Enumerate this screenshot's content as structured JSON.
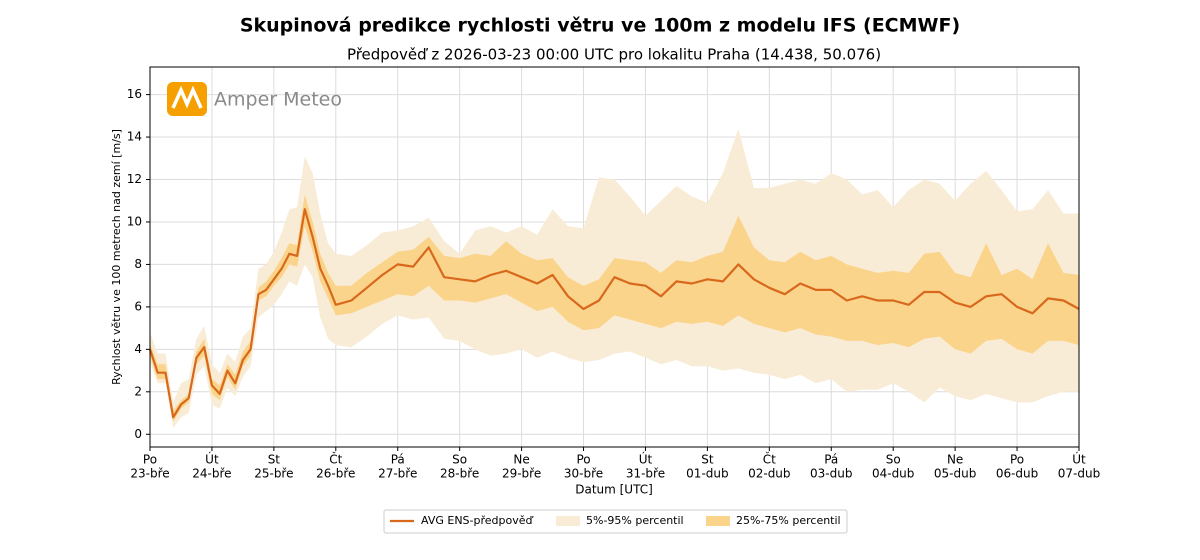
{
  "chart_data": {
    "type": "line",
    "title": "Skupinová predikce rychlosti větru ve 100m z modelu IFS (ECMWF)",
    "subtitle": "Předpověď z 2026-03-23 00:00 UTC pro lokalitu Praha (14.438, 50.076)",
    "watermark": "Amper Meteo",
    "x_label": "Datum [UTC]",
    "y_label": "Rychlost větru ve 100 metrech nad zemí [m/s]",
    "xlim": [
      0,
      15
    ],
    "ylim": [
      -0.6,
      17.3
    ],
    "yticks": [
      0,
      2,
      4,
      6,
      8,
      10,
      12,
      14,
      16
    ],
    "xticks": [
      {
        "value": 0,
        "label": "Po"
      },
      {
        "value": 1,
        "label": "Út"
      },
      {
        "value": 2,
        "label": "St"
      },
      {
        "value": 3,
        "label": "Čt"
      },
      {
        "value": 4,
        "label": "Pá"
      },
      {
        "value": 5,
        "label": "So"
      },
      {
        "value": 6,
        "label": "Ne"
      },
      {
        "value": 7,
        "label": "Po"
      },
      {
        "value": 8,
        "label": "Út"
      },
      {
        "value": 9,
        "label": "St"
      },
      {
        "value": 10,
        "label": "Čt"
      },
      {
        "value": 11,
        "label": "Pá"
      },
      {
        "value": 12,
        "label": "So"
      },
      {
        "value": 13,
        "label": "Ne"
      },
      {
        "value": 14,
        "label": "Po"
      },
      {
        "value": 15,
        "label": "Út"
      }
    ],
    "xtick_dates": [
      "23-bře",
      "24-bře",
      "25-bře",
      "26-bře",
      "27-bře",
      "28-bře",
      "29-bře",
      "30-bře",
      "31-bře",
      "01-dub",
      "02-dub",
      "03-dub",
      "04-dub",
      "05-dub",
      "06-dub",
      "07-dub"
    ],
    "grid": true,
    "legend": "bottom",
    "x": [
      0,
      0.125,
      0.25,
      0.375,
      0.5,
      0.625,
      0.75,
      0.875,
      1,
      1.125,
      1.25,
      1.375,
      1.5,
      1.625,
      1.75,
      1.875,
      2,
      2.125,
      2.25,
      2.375,
      2.5,
      2.625,
      2.75,
      2.875,
      3,
      3.25,
      3.5,
      3.75,
      4,
      4.25,
      4.5,
      4.75,
      5,
      5.25,
      5.5,
      5.75,
      6,
      6.25,
      6.5,
      6.75,
      7,
      7.25,
      7.5,
      7.75,
      8,
      8.25,
      8.5,
      8.75,
      9,
      9.25,
      9.5,
      9.75,
      10,
      10.25,
      10.5,
      10.75,
      11,
      11.25,
      11.5,
      11.75,
      12,
      12.25,
      12.5,
      12.75,
      13,
      13.25,
      13.5,
      13.75,
      14,
      14.25,
      14.5,
      14.75,
      15
    ],
    "series": [
      {
        "name": "AVG ENS-předpověď",
        "color": "#d8691c",
        "values": [
          4.0,
          2.9,
          2.9,
          0.8,
          1.4,
          1.7,
          3.6,
          4.1,
          2.3,
          1.9,
          3.0,
          2.4,
          3.5,
          4.0,
          6.6,
          6.8,
          7.3,
          7.8,
          8.5,
          8.4,
          10.6,
          9.3,
          7.8,
          7.0,
          6.1,
          6.3,
          6.9,
          7.5,
          8.0,
          7.9,
          8.8,
          7.4,
          7.3,
          7.2,
          7.5,
          7.7,
          7.4,
          7.1,
          7.5,
          6.5,
          5.9,
          6.3,
          7.4,
          7.1,
          7.0,
          6.5,
          7.2,
          7.1,
          7.3,
          7.2,
          8.0,
          7.3,
          6.9,
          6.6,
          7.1,
          6.8,
          6.8,
          6.3,
          6.5,
          6.3,
          6.3,
          6.1,
          6.7,
          6.7,
          6.2,
          6.0,
          6.5,
          6.6,
          6.0,
          5.7,
          6.4,
          6.3,
          5.9
        ]
      }
    ],
    "bands": [
      {
        "name": "5%-95% percentil",
        "color": "#f9ecd6",
        "lower": [
          3.4,
          2.4,
          2.4,
          0.3,
          0.8,
          1.0,
          2.8,
          3.2,
          1.4,
          1.2,
          2.2,
          1.8,
          2.7,
          3.2,
          5.5,
          5.8,
          6.1,
          6.6,
          7.2,
          7.0,
          8.0,
          7.4,
          5.5,
          4.5,
          4.2,
          4.1,
          4.6,
          5.2,
          5.6,
          5.4,
          5.5,
          4.5,
          4.4,
          4.0,
          3.7,
          3.8,
          4.0,
          3.6,
          3.9,
          3.6,
          3.4,
          3.5,
          3.8,
          3.9,
          3.6,
          3.3,
          3.5,
          3.2,
          3.2,
          3.0,
          3.1,
          2.9,
          2.8,
          2.6,
          2.8,
          2.4,
          2.6,
          2.0,
          2.1,
          2.1,
          2.4,
          2.0,
          1.5,
          2.2,
          1.8,
          1.6,
          1.9,
          1.7,
          1.5,
          1.5,
          1.8,
          2.0,
          2.0
        ],
        "upper": [
          4.8,
          3.8,
          3.8,
          1.5,
          2.4,
          2.6,
          4.5,
          5.1,
          3.3,
          2.9,
          3.8,
          3.4,
          4.6,
          5.0,
          7.8,
          8.0,
          8.6,
          9.5,
          10.6,
          10.7,
          13.1,
          12.3,
          10.4,
          9.0,
          8.5,
          8.4,
          8.9,
          9.5,
          9.6,
          9.8,
          10.2,
          9.1,
          8.5,
          9.6,
          9.8,
          9.5,
          9.8,
          9.4,
          10.6,
          9.8,
          9.7,
          12.1,
          12.0,
          11.2,
          10.3,
          11.0,
          11.7,
          11.2,
          10.9,
          12.3,
          14.4,
          11.6,
          11.6,
          11.8,
          12.0,
          11.8,
          12.3,
          12.0,
          11.3,
          11.5,
          10.7,
          11.5,
          12.0,
          11.8,
          11.0,
          11.8,
          12.4,
          11.5,
          10.5,
          10.6,
          11.5,
          10.4,
          10.4
        ]
      },
      {
        "name": "25%-75% percentil",
        "color": "#fbd48b",
        "lower": [
          3.7,
          2.6,
          2.6,
          0.6,
          1.2,
          1.5,
          3.3,
          3.7,
          1.9,
          1.6,
          2.7,
          2.1,
          3.2,
          3.7,
          6.3,
          6.5,
          7.0,
          7.4,
          8.0,
          7.9,
          9.8,
          8.6,
          7.2,
          6.4,
          5.6,
          5.7,
          6.0,
          6.3,
          6.6,
          6.5,
          7.0,
          6.3,
          6.3,
          6.2,
          6.4,
          6.6,
          6.2,
          5.8,
          6.0,
          5.3,
          4.9,
          5.0,
          5.6,
          5.4,
          5.2,
          5.0,
          5.3,
          5.2,
          5.3,
          5.1,
          5.6,
          5.2,
          5.0,
          4.8,
          5.0,
          4.7,
          4.6,
          4.4,
          4.4,
          4.2,
          4.3,
          4.1,
          4.5,
          4.6,
          4.0,
          3.8,
          4.4,
          4.5,
          4.0,
          3.8,
          4.4,
          4.4,
          4.2
        ],
        "upper": [
          4.3,
          3.3,
          3.3,
          1.1,
          1.6,
          1.9,
          3.9,
          4.5,
          2.6,
          2.3,
          3.3,
          2.8,
          3.9,
          4.4,
          6.9,
          7.2,
          7.7,
          8.3,
          9.0,
          8.9,
          11.3,
          10.0,
          8.5,
          7.6,
          7.0,
          7.0,
          7.6,
          8.1,
          8.6,
          8.7,
          9.3,
          8.4,
          8.3,
          8.5,
          8.4,
          9.1,
          8.5,
          8.2,
          8.3,
          7.4,
          7.0,
          7.3,
          8.3,
          8.2,
          8.1,
          7.6,
          8.2,
          8.1,
          8.4,
          8.6,
          10.3,
          8.8,
          8.2,
          8.1,
          8.6,
          8.2,
          8.4,
          8.0,
          7.8,
          7.6,
          7.7,
          7.6,
          8.5,
          8.6,
          7.6,
          7.4,
          9.0,
          7.5,
          7.8,
          7.3,
          9.0,
          7.6,
          7.5
        ]
      }
    ]
  }
}
